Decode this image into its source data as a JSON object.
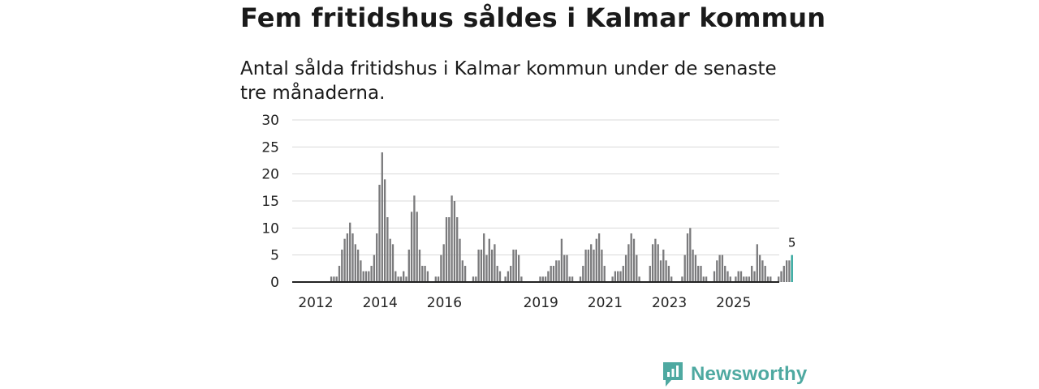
{
  "header": {
    "title": "Fem fritidshus såldes i Kalmar kommun",
    "subtitle": "Antal sålda fritidshus i Kalmar kommun under de senaste tre månaderna."
  },
  "brand": {
    "name": "Newsworthy",
    "color": "#4ea9a1",
    "icon": "bar-chart-speech-bubble-icon"
  },
  "colors": {
    "bar": "#7a7a7c",
    "highlight": "#2aa39a",
    "grid": "#d9d9d9",
    "axis": "#222222"
  },
  "chart_data": {
    "type": "bar",
    "ylim": [
      0,
      30
    ],
    "yticks": [
      0,
      5,
      10,
      15,
      20,
      25,
      30
    ],
    "grid": true,
    "xtick_labels": [
      "2012",
      "2014",
      "2016",
      "2019",
      "2021",
      "2023",
      "2025"
    ],
    "xtick_years": [
      2012,
      2014,
      2016,
      2019,
      2021,
      2023,
      2025
    ],
    "period_start": "2012-01",
    "period_end": "2025-12",
    "values": [
      0,
      0,
      0,
      0,
      0,
      0,
      0,
      1,
      1,
      1,
      3,
      6,
      8,
      9,
      11,
      9,
      7,
      6,
      4,
      2,
      2,
      2,
      3,
      5,
      9,
      18,
      24,
      19,
      12,
      8,
      7,
      2,
      1,
      1,
      2,
      1,
      6,
      13,
      16,
      13,
      6,
      3,
      3,
      2,
      0,
      0,
      1,
      1,
      5,
      7,
      12,
      12,
      16,
      15,
      12,
      8,
      4,
      3,
      0,
      0,
      1,
      1,
      6,
      6,
      9,
      5,
      8,
      6,
      7,
      3,
      2,
      0,
      1,
      2,
      3,
      6,
      6,
      5,
      1,
      0,
      0,
      0,
      0,
      0,
      0,
      1,
      1,
      1,
      2,
      3,
      3,
      4,
      4,
      8,
      5,
      5,
      1,
      1,
      0,
      0,
      1,
      3,
      6,
      6,
      7,
      6,
      8,
      9,
      6,
      3,
      0,
      0,
      1,
      2,
      2,
      2,
      3,
      5,
      7,
      9,
      8,
      5,
      1,
      0,
      0,
      0,
      3,
      7,
      8,
      7,
      4,
      6,
      4,
      3,
      1,
      0,
      0,
      0,
      1,
      5,
      9,
      10,
      6,
      5,
      3,
      3,
      1,
      1,
      0,
      0,
      2,
      4,
      5,
      5,
      3,
      2,
      1,
      0,
      1,
      2,
      2,
      1,
      1,
      1,
      3,
      2,
      7,
      5,
      4,
      3,
      1,
      1,
      0,
      0,
      1,
      2,
      3,
      4,
      4,
      5
    ],
    "highlight_last": true,
    "last_value_label": "5"
  }
}
